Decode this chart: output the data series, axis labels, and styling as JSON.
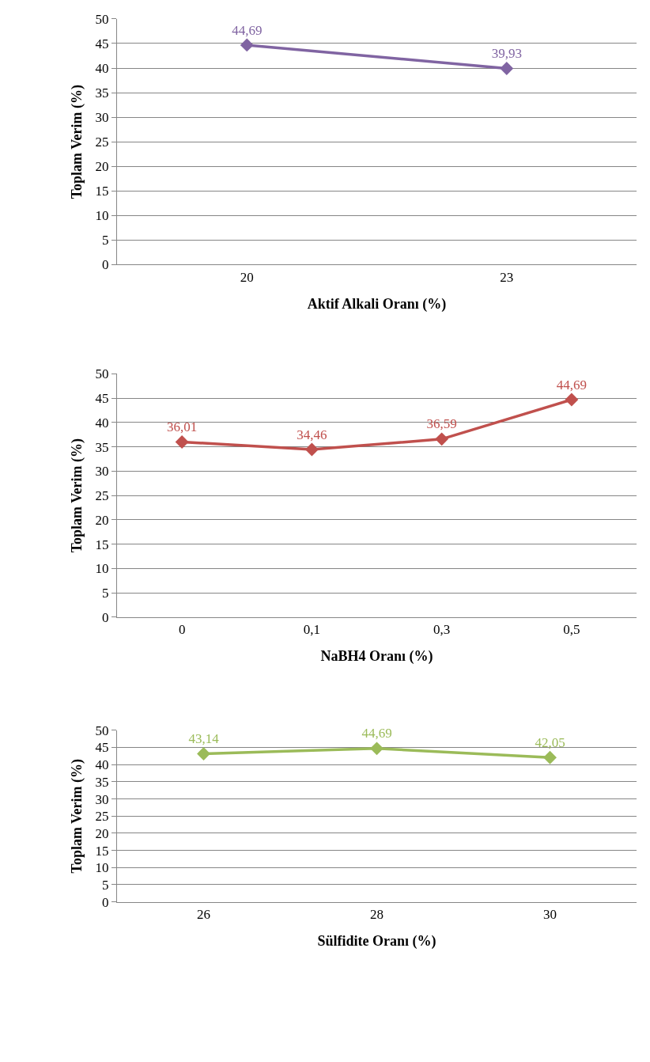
{
  "chart_data": [
    {
      "type": "line",
      "categories": [
        "20",
        "23"
      ],
      "xlabel": "Aktif Alkali Oranı (%)",
      "ylabel": "Toplam Verim (%)",
      "ylim": [
        0,
        50
      ],
      "yticks": [
        0,
        5,
        10,
        15,
        20,
        25,
        30,
        35,
        40,
        45,
        50
      ],
      "grid": "y",
      "marker": "diamond",
      "line_style": "solid",
      "series": [
        {
          "color": "#8064a2",
          "values": [
            44.69,
            39.93
          ],
          "value_labels": [
            "44,69",
            "39,93"
          ]
        }
      ]
    },
    {
      "type": "line",
      "categories": [
        "0",
        "0,1",
        "0,3",
        "0,5"
      ],
      "xlabel": "NaBH4 Oranı (%)",
      "ylabel": "Toplam Verim (%)",
      "ylim": [
        0,
        50
      ],
      "yticks": [
        0,
        5,
        10,
        15,
        20,
        25,
        30,
        35,
        40,
        45,
        50
      ],
      "grid": "y",
      "marker": "diamond",
      "line_style": "solid",
      "series": [
        {
          "color": "#c0504d",
          "values": [
            36.01,
            34.46,
            36.59,
            44.69
          ],
          "value_labels": [
            "36,01",
            "34,46",
            "36,59",
            "44,69"
          ]
        }
      ]
    },
    {
      "type": "line",
      "categories": [
        "26",
        "28",
        "30"
      ],
      "xlabel": "Sülfidite Oranı (%)",
      "ylabel": "Toplam Verim (%)",
      "ylim": [
        0,
        50
      ],
      "yticks": [
        0,
        5,
        10,
        15,
        20,
        25,
        30,
        35,
        40,
        45,
        50
      ],
      "grid": "y",
      "marker": "diamond",
      "line_style": "solid",
      "series": [
        {
          "color": "#9bbb59",
          "values": [
            43.14,
            44.69,
            42.05
          ],
          "value_labels": [
            "43,14",
            "44,69",
            "42,05"
          ]
        }
      ]
    }
  ]
}
